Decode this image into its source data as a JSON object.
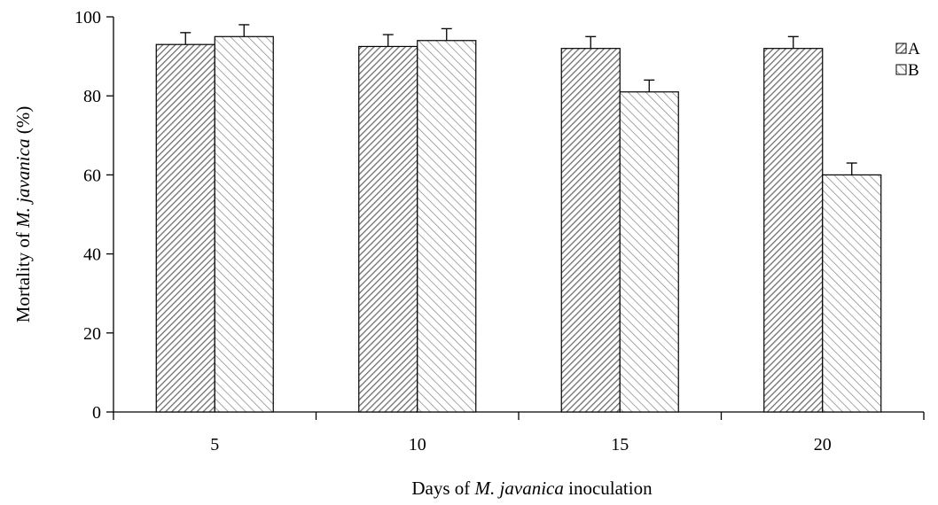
{
  "chart_data": {
    "type": "bar",
    "categories": [
      "5",
      "10",
      "15",
      "20"
    ],
    "series": [
      {
        "name": "A",
        "values": [
          93,
          92.5,
          92,
          92
        ],
        "errors": [
          3,
          3,
          3,
          3
        ],
        "pattern": "dense-diagonal"
      },
      {
        "name": "B",
        "values": [
          95,
          94,
          81,
          60
        ],
        "errors": [
          3,
          3,
          3,
          3
        ],
        "pattern": "sparse-diagonal"
      }
    ],
    "xlabel_parts": [
      {
        "text": "Days of ",
        "italic": false
      },
      {
        "text": "M. javanica",
        "italic": true
      },
      {
        "text": " inoculation",
        "italic": false
      }
    ],
    "ylabel_parts": [
      {
        "text": "Mortality of ",
        "italic": false
      },
      {
        "text": "M. javanica",
        "italic": true
      },
      {
        "text": " (%)",
        "italic": false
      }
    ],
    "ylim": [
      0,
      100
    ],
    "yticks": [
      0,
      20,
      40,
      60,
      80,
      100
    ],
    "grid": false,
    "legend_position": "top-right",
    "colors": {
      "bar_stroke": "#000000",
      "hatch": "#7a7a7a",
      "axis": "#000000"
    }
  }
}
